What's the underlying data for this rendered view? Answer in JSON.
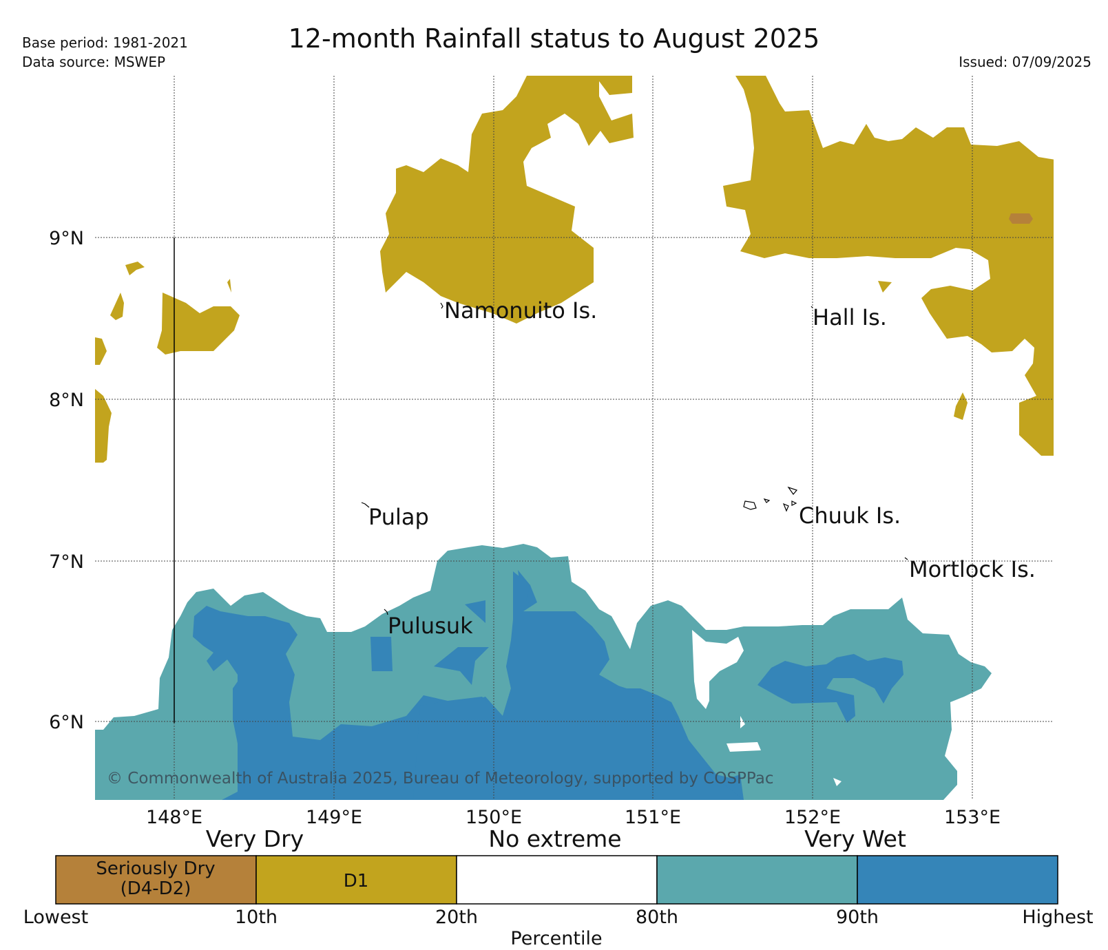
{
  "header": {
    "title": "12-month Rainfall status to August 2025",
    "base_period": "Base period: 1981-2021",
    "data_source": "Data source: MSWEP",
    "issued": "Issued: 07/09/2025"
  },
  "map": {
    "lat_labels": [
      "9°N",
      "8°N",
      "7°N",
      "6°N"
    ],
    "lon_labels": [
      "148°E",
      "149°E",
      "150°E",
      "151°E",
      "152°E",
      "153°E"
    ],
    "places": {
      "namonuito": "Namonuito Is.",
      "hall": "Hall Is.",
      "pulap": "Pulap",
      "chuuk": "Chuuk Is.",
      "mortlock": "Mortlock Is.",
      "pulusuk": "Pulusuk"
    },
    "copyright": "© Commonwealth of Australia 2025, Bureau of Meteorology, supported by COSPPac"
  },
  "legend": {
    "groups": [
      "Very Dry",
      "No extreme",
      "Very Wet"
    ],
    "boxes": [
      {
        "label": "Seriously Dry",
        "sub": "(D4-D2)",
        "color": "#b5813a"
      },
      {
        "label": "D1",
        "color": "#c2a41e"
      },
      {
        "label": "",
        "color": "#ffffff"
      },
      {
        "label": "",
        "color": "#5ba8ad"
      },
      {
        "label": "",
        "color": "#3585b8"
      }
    ],
    "ticks": [
      "Lowest",
      "10th",
      "20th",
      "80th",
      "90th",
      "Highest"
    ],
    "axis_title": "Percentile"
  },
  "colors": {
    "seriously_dry": "#b5813a",
    "d1": "#c2a41e",
    "very_wet_80": "#5ba8ad",
    "very_wet_90": "#3585b8"
  }
}
